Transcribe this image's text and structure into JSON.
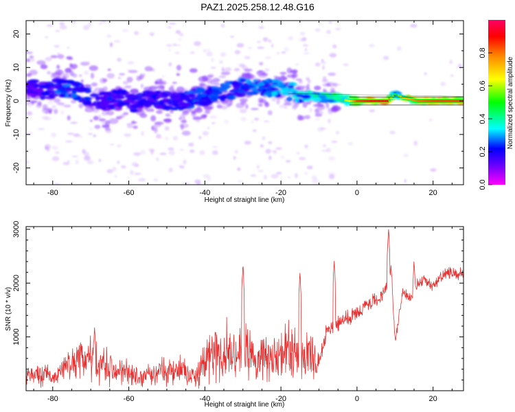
{
  "figure_title": "PAZ1.2025.258.12.48.G16",
  "chart_data": [
    {
      "type": "heatmap",
      "title": "PAZ1.2025.258.12.48.G16",
      "xlabel": "Height of straight line (km)",
      "ylabel": "Frequency (Hz)",
      "xlim": [
        -87,
        28
      ],
      "ylim": [
        -25,
        24
      ],
      "xticks": [
        -80,
        -60,
        -40,
        -20,
        0,
        20
      ],
      "yticks": [
        -20,
        -10,
        0,
        10,
        20
      ],
      "colorbar": {
        "label": "Normalized spectral amplitude",
        "range": [
          0,
          1
        ],
        "ticks": [
          0.0,
          0.2,
          0.4,
          0.6,
          0.8
        ],
        "colormap": [
          "#ff00ff",
          "#6600ff",
          "#0000ff",
          "#00ffff",
          "#00ff00",
          "#ffff00",
          "#ff8800",
          "#ff0000",
          "#ff0066"
        ]
      },
      "ridge": {
        "x": [
          -86,
          -82,
          -78,
          -74,
          -70,
          -66,
          -62,
          -58,
          -54,
          -50,
          -46,
          -42,
          -38,
          -34,
          -30,
          -26,
          -22,
          -18,
          -14,
          -10,
          -6,
          -2,
          0,
          4,
          8,
          10,
          12,
          16,
          20,
          24,
          28
        ],
        "freq": [
          4,
          3,
          4,
          3,
          1,
          0,
          1,
          -1,
          1,
          0,
          0,
          1,
          2,
          3,
          4,
          4,
          4,
          3,
          2,
          1,
          1,
          0,
          0,
          0,
          0,
          2,
          1,
          0,
          0,
          0,
          0
        ],
        "amplitude": [
          0.2,
          0.25,
          0.3,
          0.3,
          0.25,
          0.25,
          0.25,
          0.2,
          0.25,
          0.25,
          0.25,
          0.3,
          0.3,
          0.3,
          0.3,
          0.35,
          0.35,
          0.4,
          0.4,
          0.45,
          0.5,
          0.65,
          0.85,
          0.9,
          0.9,
          0.45,
          0.7,
          0.8,
          0.85,
          0.85,
          0.85
        ]
      }
    },
    {
      "type": "line",
      "xlabel": "Height of straight line (km)",
      "ylabel": "SNR (10 * v/v)",
      "xlim": [
        -87,
        28
      ],
      "ylim": [
        0,
        3050
      ],
      "xticks": [
        -80,
        -60,
        -40,
        -20,
        0,
        20
      ],
      "yticks": [
        1000,
        2000,
        3000
      ],
      "series": [
        {
          "name": "SNR",
          "color": "#e83030",
          "x": [
            -87,
            -84,
            -80,
            -76,
            -74,
            -72,
            -70,
            -68,
            -66,
            -64,
            -62,
            -60,
            -58,
            -56,
            -54,
            -52,
            -50,
            -48,
            -46,
            -44,
            -42,
            -40,
            -38,
            -36,
            -34,
            -32,
            -30,
            -28,
            -26,
            -24,
            -22,
            -20,
            -18,
            -16,
            -14,
            -12,
            -10,
            -8,
            -6,
            -4,
            -2,
            0,
            2,
            4,
            6,
            8,
            9,
            10,
            12,
            14,
            16,
            18,
            20,
            22,
            24,
            26,
            28
          ],
          "y": [
            250,
            300,
            250,
            400,
            550,
            500,
            650,
            500,
            550,
            350,
            400,
            300,
            250,
            250,
            300,
            350,
            450,
            300,
            400,
            250,
            300,
            600,
            650,
            700,
            750,
            650,
            750,
            600,
            550,
            700,
            650,
            600,
            750,
            700,
            800,
            650,
            500,
            1100,
            1250,
            1300,
            1350,
            1450,
            1550,
            1650,
            1700,
            2050,
            2300,
            900,
            1850,
            1700,
            2000,
            2050,
            1950,
            2100,
            2200,
            2150,
            2200
          ],
          "spikes": [
            {
              "x": -69,
              "y": 1230
            },
            {
              "x": -30,
              "y": 2400
            },
            {
              "x": -15,
              "y": 2250
            },
            {
              "x": -6,
              "y": 2480
            },
            {
              "x": 8.3,
              "y": 3060
            },
            {
              "x": 15,
              "y": 2470
            }
          ]
        }
      ]
    }
  ]
}
